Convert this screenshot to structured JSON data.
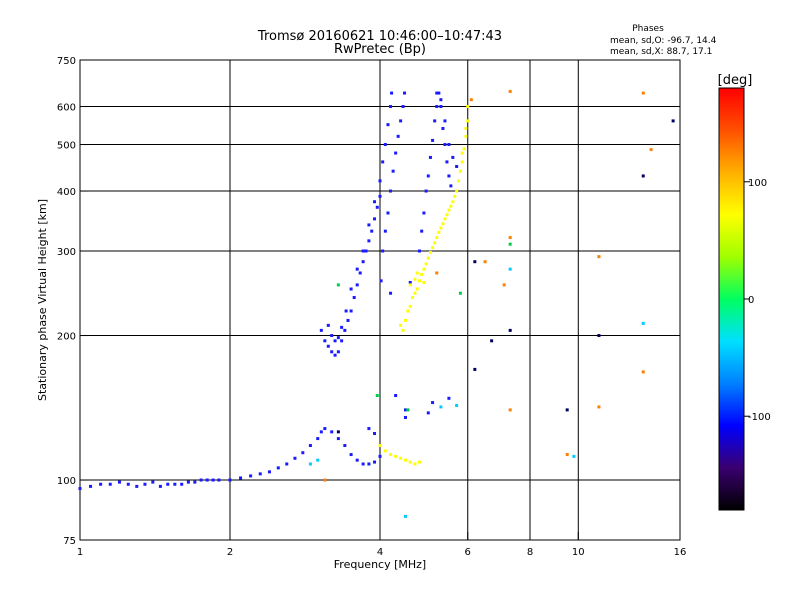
{
  "chart_data": {
    "type": "scatter",
    "title": "Tromsø 20160621 10:46:00–10:47:43",
    "subtitle": "RwPretec (Bp)",
    "stats": {
      "heading": "Phases",
      "o_line": "mean, sd,O: -96.7, 14.4",
      "x_line": "mean, sd,X: 88.7, 17.1"
    },
    "xlabel": "Frequency [MHz]",
    "ylabel": "Stationary phase Virtual Height [km]",
    "x_scale": "log",
    "y_scale": "log",
    "xlim": [
      1,
      16
    ],
    "ylim": [
      75,
      750
    ],
    "x_ticks": [
      1,
      2,
      4,
      6,
      8,
      10,
      16
    ],
    "x_gridlines": [
      2,
      4,
      6,
      8,
      10
    ],
    "y_ticks": [
      75,
      100,
      200,
      300,
      400,
      500,
      600,
      750
    ],
    "y_gridlines": [
      100,
      200,
      300,
      400,
      500,
      600
    ],
    "grid": true,
    "colorbar": {
      "label": "[deg]",
      "ticks": [
        100,
        0,
        -100
      ],
      "range": [
        -180,
        180
      ],
      "colors": [
        "#000000",
        "#3a0070",
        "#0000ff",
        "#0080ff",
        "#00e0ff",
        "#00ff60",
        "#a0ff00",
        "#ffff00",
        "#ffb000",
        "#ff5000",
        "#ff0000"
      ]
    },
    "series": [
      {
        "color": "#1a1aff",
        "points": [
          [
            1.0,
            96
          ],
          [
            1.05,
            97
          ],
          [
            1.1,
            98
          ],
          [
            1.15,
            98
          ],
          [
            1.2,
            99
          ],
          [
            1.25,
            98
          ],
          [
            1.3,
            97
          ],
          [
            1.35,
            98
          ],
          [
            1.4,
            99
          ],
          [
            1.45,
            97
          ],
          [
            1.5,
            98
          ],
          [
            1.55,
            98
          ],
          [
            1.6,
            98
          ],
          [
            1.65,
            99
          ],
          [
            1.7,
            99
          ],
          [
            1.75,
            100
          ],
          [
            1.8,
            100
          ],
          [
            1.85,
            100
          ],
          [
            1.9,
            100
          ],
          [
            2.0,
            100
          ],
          [
            2.1,
            101
          ],
          [
            2.2,
            102
          ],
          [
            2.3,
            103
          ],
          [
            2.4,
            104
          ],
          [
            2.5,
            106
          ],
          [
            2.6,
            108
          ],
          [
            2.7,
            111
          ],
          [
            2.8,
            114
          ],
          [
            2.9,
            118
          ],
          [
            3.0,
            122
          ],
          [
            3.05,
            126
          ],
          [
            3.1,
            128
          ],
          [
            3.2,
            126
          ],
          [
            3.3,
            122
          ],
          [
            3.4,
            118
          ],
          [
            3.5,
            113
          ],
          [
            3.6,
            110
          ],
          [
            3.7,
            108
          ],
          [
            3.8,
            108
          ],
          [
            3.9,
            109
          ],
          [
            4.0,
            112
          ],
          [
            3.05,
            205
          ],
          [
            3.1,
            195
          ],
          [
            3.15,
            190
          ],
          [
            3.2,
            185
          ],
          [
            3.25,
            182
          ],
          [
            3.3,
            185
          ],
          [
            3.35,
            195
          ],
          [
            3.4,
            205
          ],
          [
            3.45,
            215
          ],
          [
            3.5,
            225
          ],
          [
            3.55,
            240
          ],
          [
            3.6,
            255
          ],
          [
            3.65,
            270
          ],
          [
            3.7,
            285
          ],
          [
            3.75,
            300
          ],
          [
            3.8,
            315
          ],
          [
            3.85,
            330
          ],
          [
            3.9,
            350
          ],
          [
            3.95,
            370
          ],
          [
            4.0,
            390
          ],
          [
            3.15,
            210
          ],
          [
            3.2,
            200
          ],
          [
            3.25,
            195
          ],
          [
            3.3,
            198
          ],
          [
            3.35,
            208
          ],
          [
            3.42,
            225
          ],
          [
            3.5,
            250
          ],
          [
            3.6,
            275
          ],
          [
            3.7,
            300
          ],
          [
            3.8,
            340
          ],
          [
            3.9,
            380
          ],
          [
            4.0,
            420
          ],
          [
            4.05,
            460
          ],
          [
            4.1,
            500
          ],
          [
            4.15,
            550
          ],
          [
            4.2,
            600
          ],
          [
            4.22,
            640
          ],
          [
            4.02,
            260
          ],
          [
            4.05,
            300
          ],
          [
            4.1,
            330
          ],
          [
            4.15,
            360
          ],
          [
            4.2,
            400
          ],
          [
            4.25,
            440
          ],
          [
            4.3,
            480
          ],
          [
            4.35,
            520
          ],
          [
            4.4,
            560
          ],
          [
            4.45,
            600
          ],
          [
            4.48,
            640
          ],
          [
            4.8,
            300
          ],
          [
            4.85,
            330
          ],
          [
            4.9,
            360
          ],
          [
            4.95,
            400
          ],
          [
            5.0,
            430
          ],
          [
            5.05,
            470
          ],
          [
            5.1,
            510
          ],
          [
            5.15,
            560
          ],
          [
            5.2,
            600
          ],
          [
            5.25,
            640
          ],
          [
            5.3,
            600
          ],
          [
            5.35,
            540
          ],
          [
            5.4,
            500
          ],
          [
            5.45,
            460
          ],
          [
            5.5,
            430
          ],
          [
            5.55,
            410
          ],
          [
            5.2,
            640
          ],
          [
            5.3,
            620
          ],
          [
            5.4,
            560
          ],
          [
            5.5,
            500
          ],
          [
            5.6,
            470
          ],
          [
            5.7,
            450
          ],
          [
            4.3,
            150
          ],
          [
            4.5,
            140
          ],
          [
            5.1,
            145
          ],
          [
            5.5,
            148
          ],
          [
            4.5,
            135
          ],
          [
            5.0,
            138
          ],
          [
            3.8,
            128
          ],
          [
            3.9,
            125
          ],
          [
            4.2,
            245
          ],
          [
            4.6,
            258
          ]
        ]
      },
      {
        "color": "#ffff00",
        "points": [
          [
            4.45,
            205
          ],
          [
            4.5,
            215
          ],
          [
            4.6,
            230
          ],
          [
            4.7,
            245
          ],
          [
            4.8,
            260
          ],
          [
            4.9,
            275
          ],
          [
            5.0,
            290
          ],
          [
            5.1,
            305
          ],
          [
            5.2,
            320
          ],
          [
            5.3,
            335
          ],
          [
            5.4,
            350
          ],
          [
            5.5,
            365
          ],
          [
            5.6,
            380
          ],
          [
            5.7,
            400
          ],
          [
            5.75,
            420
          ],
          [
            5.8,
            440
          ],
          [
            5.85,
            460
          ],
          [
            5.9,
            490
          ],
          [
            5.95,
            520
          ],
          [
            6.0,
            560
          ],
          [
            4.4,
            210
          ],
          [
            4.55,
            225
          ],
          [
            4.65,
            240
          ],
          [
            4.75,
            250
          ],
          [
            4.85,
            268
          ],
          [
            4.95,
            282
          ],
          [
            5.05,
            298
          ],
          [
            5.15,
            312
          ],
          [
            5.25,
            328
          ],
          [
            5.35,
            342
          ],
          [
            5.45,
            357
          ],
          [
            5.55,
            372
          ],
          [
            5.65,
            390
          ],
          [
            5.85,
            480
          ],
          [
            5.95,
            540
          ],
          [
            6.0,
            600
          ],
          [
            4.6,
            255
          ],
          [
            4.7,
            262
          ],
          [
            4.75,
            270
          ],
          [
            4.9,
            258
          ],
          [
            4.0,
            118
          ],
          [
            4.1,
            115
          ],
          [
            4.2,
            113
          ],
          [
            4.3,
            112
          ],
          [
            4.4,
            111
          ],
          [
            4.5,
            110
          ],
          [
            4.6,
            109
          ],
          [
            4.7,
            108
          ],
          [
            4.8,
            109
          ]
        ]
      },
      {
        "color": "#00ccff",
        "points": [
          [
            2.9,
            108
          ],
          [
            3.0,
            110
          ],
          [
            4.5,
            84
          ],
          [
            5.3,
            142
          ],
          [
            5.7,
            143
          ],
          [
            7.3,
            275
          ],
          [
            9.8,
            112
          ],
          [
            13.5,
            212
          ]
        ]
      },
      {
        "color": "#ff8000",
        "points": [
          [
            5.2,
            270
          ],
          [
            6.1,
            620
          ],
          [
            6.5,
            285
          ],
          [
            7.1,
            255
          ],
          [
            7.3,
            645
          ],
          [
            7.3,
            320
          ],
          [
            7.3,
            140
          ],
          [
            9.5,
            113
          ],
          [
            11.0,
            142
          ],
          [
            11.0,
            292
          ],
          [
            13.5,
            640
          ],
          [
            13.5,
            168
          ],
          [
            14.0,
            488
          ],
          [
            3.1,
            100
          ]
        ]
      },
      {
        "color": "#00cc44",
        "points": [
          [
            3.95,
            150
          ],
          [
            4.55,
            140
          ],
          [
            5.8,
            245
          ],
          [
            7.3,
            310
          ],
          [
            3.3,
            255
          ]
        ]
      },
      {
        "color": "#000060",
        "points": [
          [
            6.2,
            170
          ],
          [
            6.7,
            195
          ],
          [
            7.3,
            205
          ],
          [
            9.5,
            140
          ],
          [
            11.0,
            200
          ],
          [
            13.5,
            430
          ],
          [
            15.5,
            560
          ],
          [
            6.2,
            285
          ],
          [
            3.3,
            126
          ]
        ]
      }
    ]
  }
}
